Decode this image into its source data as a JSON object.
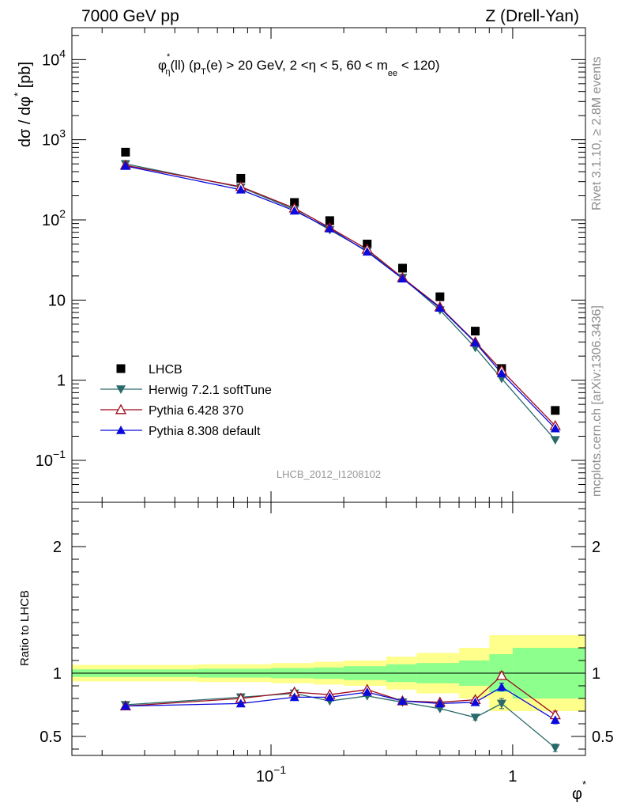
{
  "header": {
    "left": "7000 GeV pp",
    "right": "Z (Drell-Yan)"
  },
  "side_labels": {
    "top": "Rivet 3.1.10, ≥ 2.8M events",
    "bottom": "mcplots.cern.ch [arXiv:1306.3436]"
  },
  "colors": {
    "data": "#000000",
    "herwig": "#2a6a6a",
    "pythia6": "#9c0a1c",
    "pythia8": "#0a0adc",
    "band_outer": "#ffff8c",
    "band_inner": "#8cff8c",
    "watermark": "#969696"
  },
  "chart_data": [
    {
      "type": "scatter",
      "panel": "main",
      "title": "φ*η(ll) (pT(e) > 20 GeV, 2 <η < 5, 60 < mee < 120)",
      "title_parts": {
        "phi": "φ",
        "phi_sup": "*",
        "phi_sub": "η",
        "a": "(ll) (p",
        "pt_sub": "T",
        "b": "(e) > 20 GeV, 2 <η < 5, 60 < m",
        "m_sub": "ee",
        "c": " < 120)"
      },
      "ylabel": "dσ / dφ* [pb]",
      "ylabel_parts": {
        "main": "dσ / dφ",
        "sup": "*",
        "unit": " [pb]"
      },
      "watermark": "LHCB_2012_I1208102",
      "x_scale": "log",
      "y_scale": "log",
      "xlim": [
        0.015,
        2.0
      ],
      "ylim": [
        0.03,
        25000
      ],
      "y_ticks": [
        {
          "value": 0.1,
          "base": "10",
          "exp": "−1"
        },
        {
          "value": 1,
          "label": "1"
        },
        {
          "value": 10,
          "label": "10"
        },
        {
          "value": 100,
          "base": "10",
          "exp": "2"
        },
        {
          "value": 1000,
          "base": "10",
          "exp": "3"
        },
        {
          "value": 10000,
          "base": "10",
          "exp": "4"
        }
      ],
      "x": [
        0.025,
        0.075,
        0.125,
        0.175,
        0.25,
        0.35,
        0.5,
        0.7,
        0.9,
        1.5
      ],
      "series": [
        {
          "name": "LHCB",
          "key": "data",
          "marker": "square",
          "values": [
            700,
            330,
            165,
            98,
            50,
            25,
            11,
            4.1,
            1.4,
            0.42
          ]
        },
        {
          "name": "Herwig 7.2.1 softTune",
          "key": "herwig",
          "marker": "triangle-down",
          "values": [
            500,
            255,
            135,
            75,
            41,
            19,
            7.5,
            2.55,
            1.05,
            0.18
          ]
        },
        {
          "name": "Pythia 6.428 370",
          "key": "pythia6",
          "marker": "triangle-up-open",
          "values": [
            480,
            260,
            140,
            80,
            43,
            19,
            8.2,
            3.0,
            1.33,
            0.27
          ]
        },
        {
          "name": "Pythia 8.308 default",
          "key": "pythia8",
          "marker": "triangle-up",
          "values": [
            470,
            238,
            130,
            78,
            40,
            18.5,
            8.0,
            2.95,
            1.22,
            0.25
          ]
        }
      ],
      "legend": "bottom-left"
    },
    {
      "type": "line",
      "panel": "ratio",
      "ylabel": "Ratio to LHCB",
      "xlabel": "φ",
      "xlabel_sup": "*",
      "x_scale": "log",
      "xlim": [
        0.015,
        2.0
      ],
      "ylim": [
        0.35,
        2.35
      ],
      "y_ticks": [
        {
          "value": 0.5,
          "label": "0.5"
        },
        {
          "value": 1,
          "label": "1"
        },
        {
          "value": 2,
          "label": "2"
        }
      ],
      "x_ticks": [
        {
          "value": 0.1,
          "base": "10",
          "exp": "−1"
        },
        {
          "value": 1,
          "label": "1"
        }
      ],
      "bins": [
        {
          "lo": 0.015,
          "hi": 0.05,
          "inner": 0.03,
          "outer": 0.065
        },
        {
          "lo": 0.05,
          "hi": 0.1,
          "inner": 0.035,
          "outer": 0.07
        },
        {
          "lo": 0.1,
          "hi": 0.15,
          "inner": 0.04,
          "outer": 0.08
        },
        {
          "lo": 0.15,
          "hi": 0.2,
          "inner": 0.045,
          "outer": 0.09
        },
        {
          "lo": 0.2,
          "hi": 0.3,
          "inner": 0.055,
          "outer": 0.1
        },
        {
          "lo": 0.3,
          "hi": 0.4,
          "inner": 0.07,
          "outer": 0.13
        },
        {
          "lo": 0.4,
          "hi": 0.6,
          "inner": 0.08,
          "outer": 0.16
        },
        {
          "lo": 0.6,
          "hi": 0.8,
          "inner": 0.1,
          "outer": 0.2
        },
        {
          "lo": 0.8,
          "hi": 1.0,
          "inner": 0.15,
          "outer": 0.3
        },
        {
          "lo": 1.0,
          "hi": 2.0,
          "inner": 0.2,
          "outer": 0.3
        }
      ],
      "x": [
        0.025,
        0.075,
        0.125,
        0.175,
        0.25,
        0.35,
        0.5,
        0.7,
        0.9,
        1.5
      ],
      "series": [
        {
          "name": "Herwig 7.2.1 softTune",
          "key": "herwig",
          "marker": "triangle-down",
          "values": [
            0.75,
            0.81,
            0.84,
            0.78,
            0.82,
            0.77,
            0.72,
            0.65,
            0.76,
            0.41
          ],
          "errors": [
            0,
            0,
            0,
            0,
            0,
            0,
            0.01,
            0.02,
            0.04,
            0.03
          ]
        },
        {
          "name": "Pythia 6.428 370",
          "key": "pythia6",
          "marker": "triangle-up-open",
          "values": [
            0.74,
            0.8,
            0.85,
            0.83,
            0.87,
            0.78,
            0.77,
            0.79,
            0.98,
            0.67
          ],
          "errors": [
            0,
            0,
            0,
            0,
            0,
            0,
            0.01,
            0.02,
            0.03,
            0.03
          ]
        },
        {
          "name": "Pythia 8.308 default",
          "key": "pythia8",
          "marker": "triangle-up",
          "values": [
            0.74,
            0.76,
            0.81,
            0.81,
            0.85,
            0.78,
            0.76,
            0.77,
            0.89,
            0.63
          ],
          "errors": [
            0,
            0,
            0,
            0,
            0,
            0,
            0.01,
            0.02,
            0.03,
            0.03
          ]
        }
      ]
    }
  ]
}
